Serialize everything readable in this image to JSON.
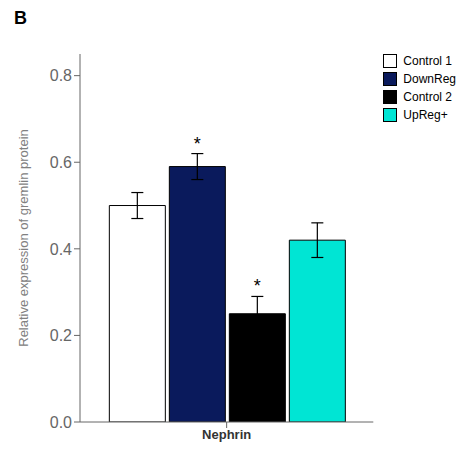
{
  "chart_data": {
    "type": "bar",
    "title": "B",
    "categories": [
      "Nephrin"
    ],
    "series": [
      {
        "name": "Control 1",
        "color": "#ffffff",
        "values": [
          0.5
        ],
        "errors": [
          0.03
        ]
      },
      {
        "name": "DownReg",
        "color": "#0a1a5c",
        "values": [
          0.59
        ],
        "errors": [
          0.03
        ],
        "annotations": [
          "*"
        ]
      },
      {
        "name": "Control 2",
        "color": "#000000",
        "values": [
          0.25
        ],
        "errors": [
          0.04
        ],
        "annotations": [
          "*"
        ]
      },
      {
        "name": "UpReg+",
        "color": "#00e5d4",
        "values": [
          0.42
        ],
        "errors": [
          0.04
        ]
      }
    ],
    "ylabel": "Relative expression of gremlin protein",
    "ylim": [
      0.0,
      0.85
    ],
    "yticks": [
      {
        "value": 0,
        "label": "0.0"
      },
      0.2,
      0.4,
      0.6,
      0.8
    ],
    "legend": "upper right",
    "grid": false
  }
}
